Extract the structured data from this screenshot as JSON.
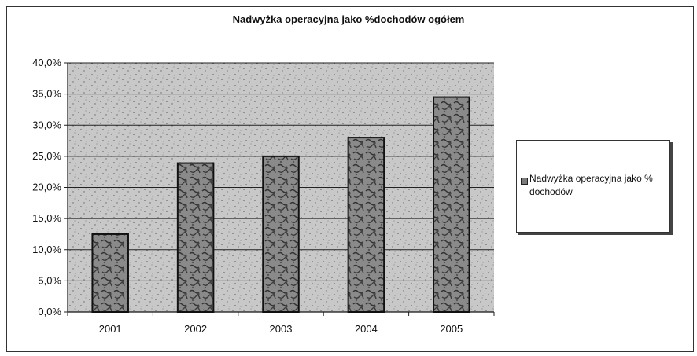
{
  "chart_data": {
    "type": "bar",
    "title": "Nadwyżka operacyjna jako %dochodów ogółem",
    "categories": [
      "2001",
      "2002",
      "2003",
      "2004",
      "2005"
    ],
    "series": [
      {
        "name": "Nadwyżka operacyjna jako % dochodów",
        "values": [
          12.5,
          23.9,
          25.0,
          28.0,
          34.5
        ]
      }
    ],
    "y_ticks": [
      "0,0%",
      "5,0%",
      "10,0%",
      "15,0%",
      "20,0%",
      "25,0%",
      "30,0%",
      "35,0%",
      "40,0%"
    ],
    "ylim": [
      0,
      40
    ],
    "xlabel": "",
    "ylabel": "",
    "grid": true,
    "legend_position": "right",
    "colors": {
      "bar_fill": "#8a8a8a",
      "bar_pattern": "#3a3a3a",
      "plot_bg": "#c8c8c8",
      "grid": "#222222"
    }
  }
}
